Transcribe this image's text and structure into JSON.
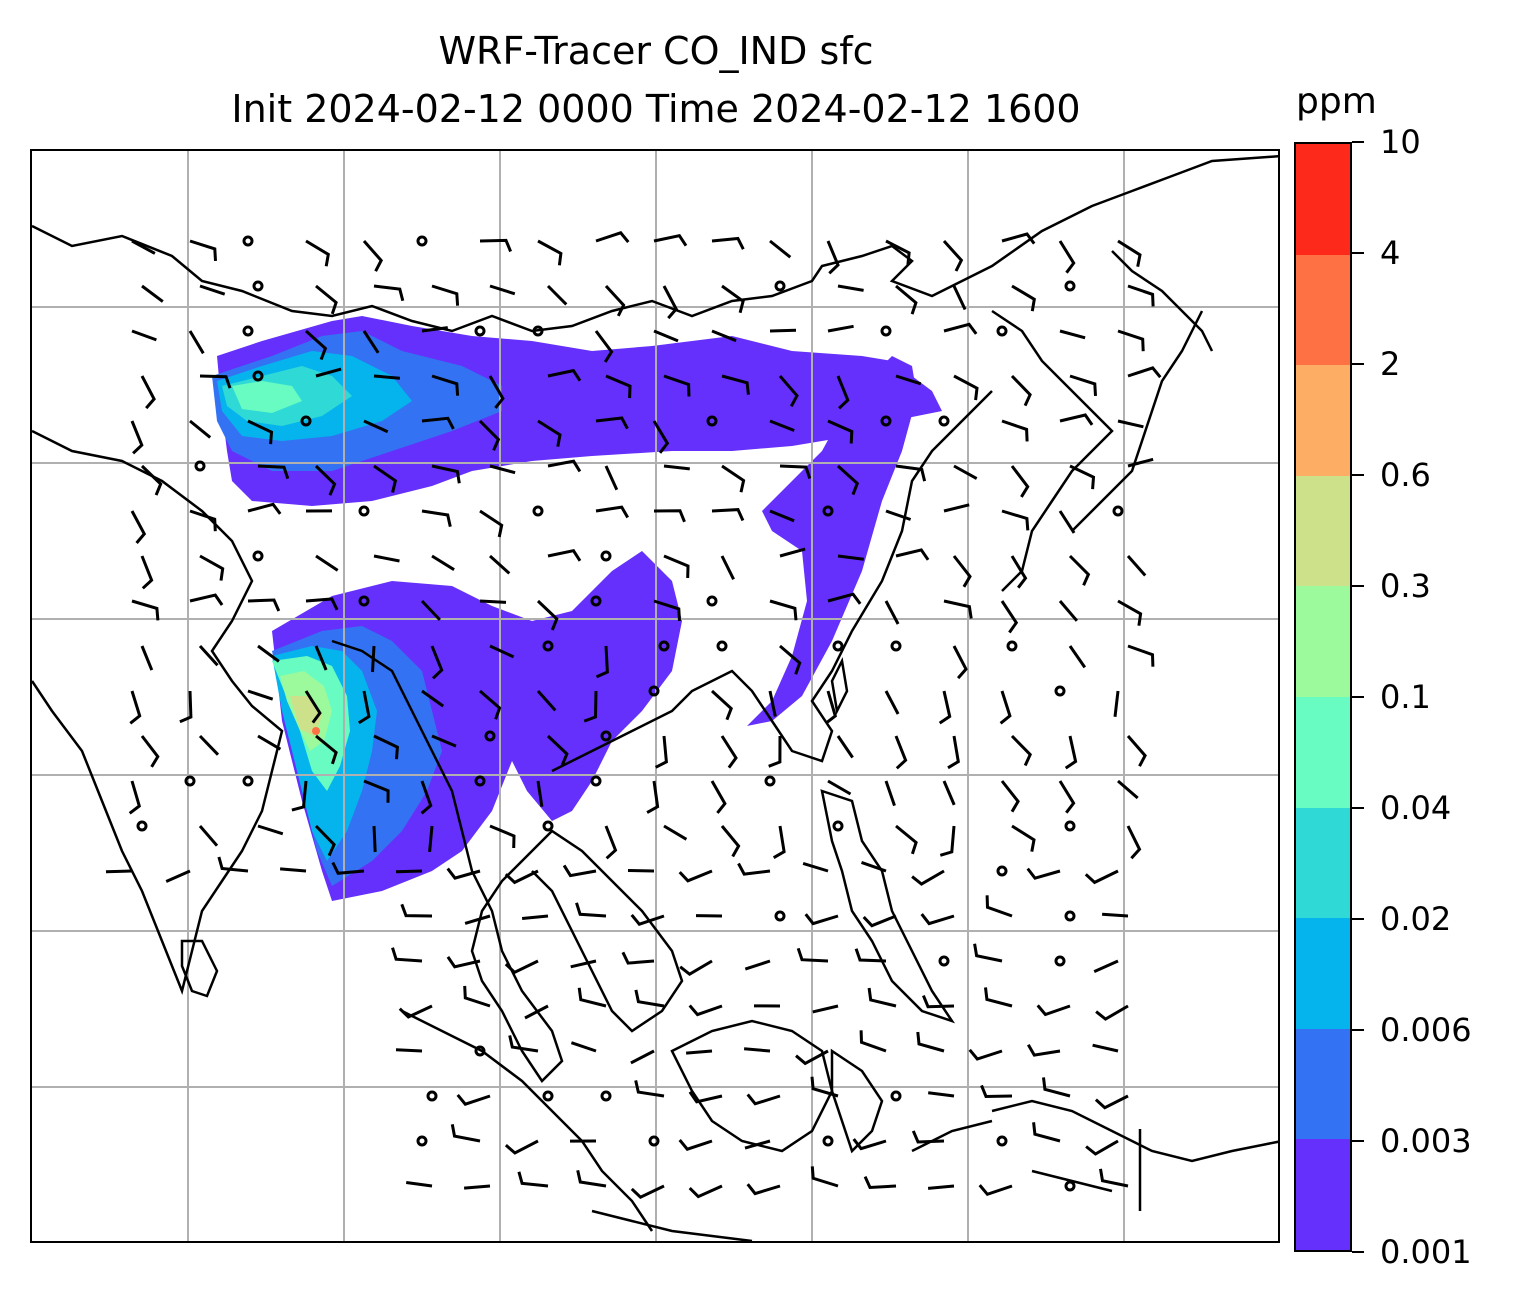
{
  "title": {
    "line1": "WRF-Tracer CO_IND sfc",
    "line2": "Init 2024-02-12 0000 Time 2024-02-12 1600"
  },
  "colorbar": {
    "unit": "ppm",
    "levels": [
      "0.001",
      "0.003",
      "0.006",
      "0.02",
      "0.04",
      "0.1",
      "0.3",
      "0.6",
      "2",
      "4",
      "10"
    ],
    "colors": [
      "#6530fb",
      "#3373f3",
      "#05b4ec",
      "#2fd9d6",
      "#68fcc2",
      "#9cfa9c",
      "#cde18a",
      "#fdae64",
      "#fd7144",
      "#fd2a1c"
    ]
  },
  "map": {
    "grid": "on",
    "grid_color": "#b0b0b0",
    "coastline_color": "#000000",
    "field": "CO_IND surface tracer concentration",
    "wind": "barbs"
  }
}
